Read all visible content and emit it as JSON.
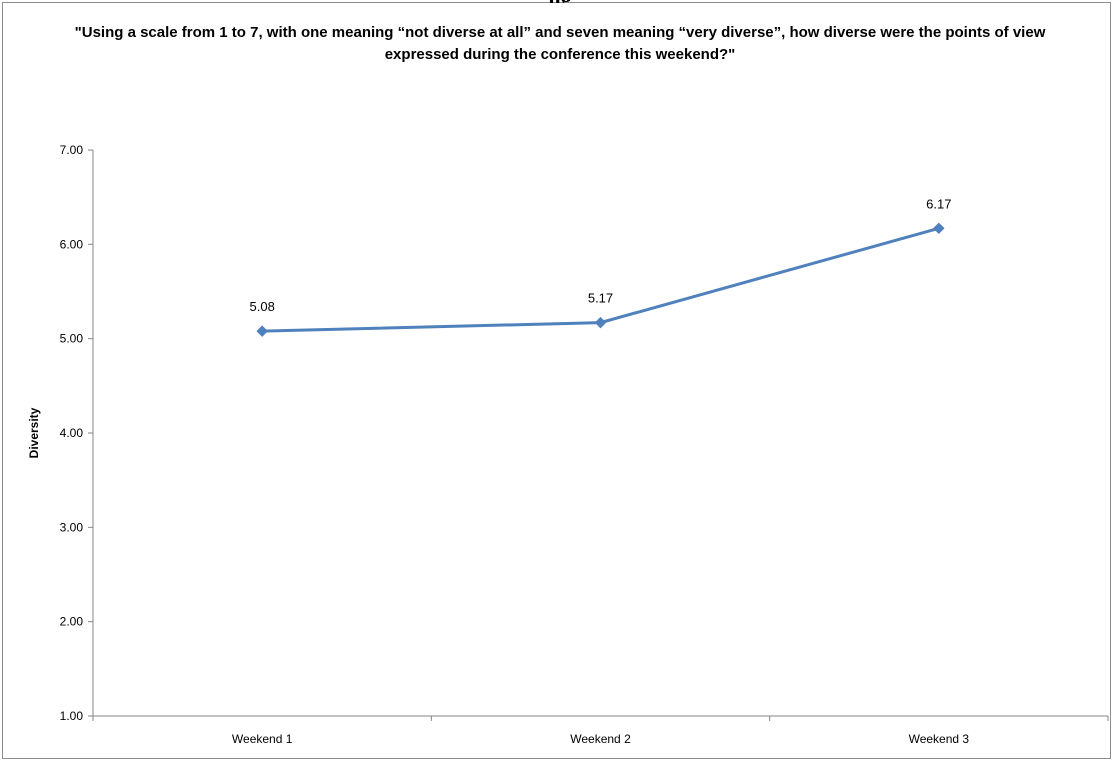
{
  "chart_data": {
    "type": "line",
    "title": "\"Using a scale from 1 to 7, with one meaning “not diverse at all” and seven meaning “very diverse”, how diverse were the points of view expressed during the conference this weekend?\"",
    "cropped_heading_fragment": "ng",
    "xlabel": "",
    "ylabel": "Diversity",
    "categories": [
      "Weekend 1",
      "Weekend 2",
      "Weekend 3"
    ],
    "series": [
      {
        "values": [
          5.08,
          5.17,
          6.17
        ],
        "labels": [
          "5.08",
          "5.17",
          "6.17"
        ],
        "color": "#4f81bd",
        "marker": "diamond"
      }
    ],
    "ylim": [
      1,
      7
    ],
    "yticks": [
      "1.00",
      "2.00",
      "3.00",
      "4.00",
      "5.00",
      "6.00",
      "7.00"
    ],
    "grid": false,
    "legend": "none"
  }
}
